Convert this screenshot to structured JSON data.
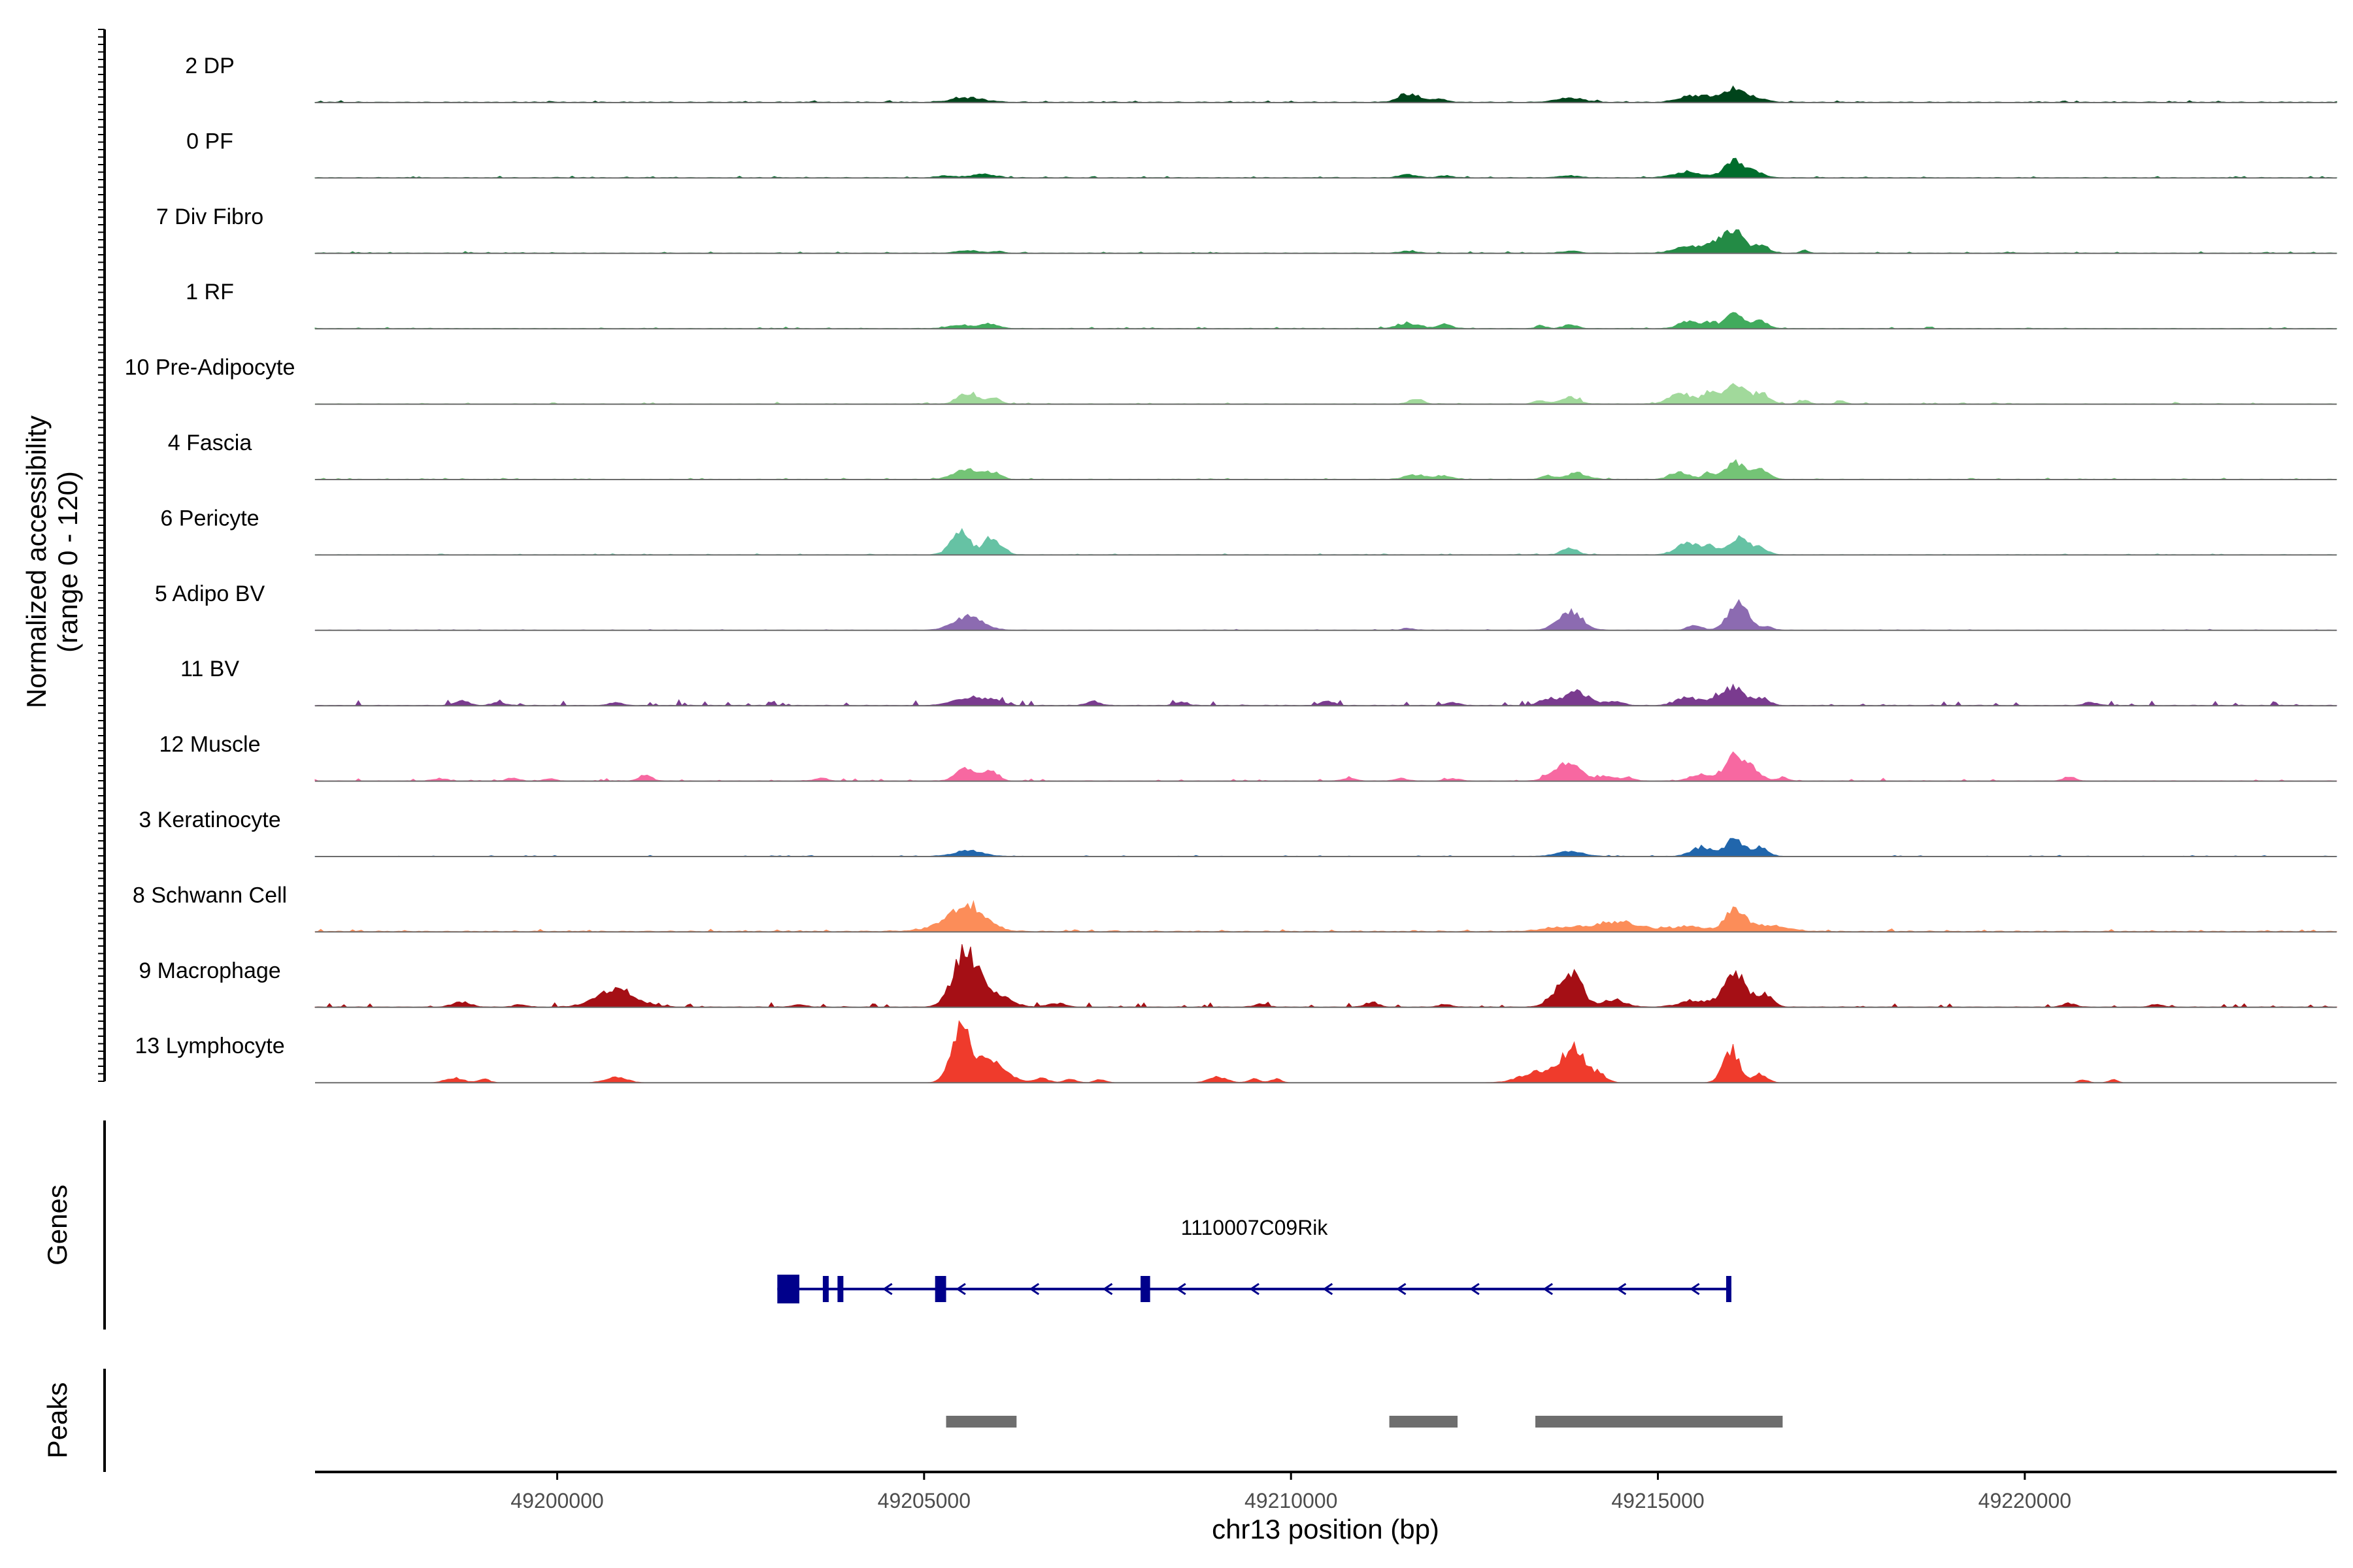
{
  "chart_data": {
    "type": "area",
    "title": "",
    "chromosome": "chr13",
    "xlabel": "chr13 position (bp)",
    "ylabel": "Normalized accessibility",
    "ylabel_range": "(range 0 - 120)",
    "y_range": [
      0,
      120
    ],
    "xlim": [
      49196700,
      49224250
    ],
    "xticks": [
      49200000,
      49205000,
      49210000,
      49215000,
      49220000
    ],
    "xtick_labels": [
      "49200000",
      "49205000",
      "49210000",
      "49215000",
      "49220000"
    ],
    "series": [
      {
        "name": "2 DP",
        "color": "#00441b",
        "baseline": 1.2,
        "noise": 0.8,
        "peaks": [
          [
            49205600,
            220,
            7
          ],
          [
            49211600,
            130,
            14
          ],
          [
            49212000,
            110,
            6
          ],
          [
            49213800,
            180,
            7
          ],
          [
            49215400,
            150,
            9
          ],
          [
            49215700,
            150,
            8
          ],
          [
            49216050,
            130,
            22
          ],
          [
            49216350,
            120,
            7
          ]
        ]
      },
      {
        "name": "0 PF",
        "color": "#006d2c",
        "baseline": 1.0,
        "noise": 0.7,
        "peaks": [
          [
            49205300,
            120,
            3
          ],
          [
            49205800,
            150,
            6
          ],
          [
            49211600,
            120,
            5
          ],
          [
            49212100,
            100,
            3
          ],
          [
            49213800,
            150,
            3
          ],
          [
            49215400,
            200,
            8
          ],
          [
            49216050,
            140,
            28
          ],
          [
            49216350,
            100,
            8
          ]
        ]
      },
      {
        "name": "7 Div Fibro",
        "color": "#238b45",
        "baseline": 0.9,
        "noise": 0.7,
        "peaks": [
          [
            49205600,
            150,
            4
          ],
          [
            49206000,
            80,
            3
          ],
          [
            49211600,
            120,
            3
          ],
          [
            49213800,
            120,
            3
          ],
          [
            49215400,
            180,
            10
          ],
          [
            49215800,
            150,
            18
          ],
          [
            49216050,
            120,
            33
          ],
          [
            49216400,
            100,
            14
          ],
          [
            49217000,
            50,
            6
          ]
        ]
      },
      {
        "name": "1 RF",
        "color": "#41ab5d",
        "baseline": 0.8,
        "noise": 0.7,
        "peaks": [
          [
            49205500,
            150,
            6
          ],
          [
            49205900,
            120,
            7
          ],
          [
            49211600,
            150,
            8
          ],
          [
            49212100,
            100,
            6
          ],
          [
            49213400,
            60,
            5
          ],
          [
            49213800,
            100,
            6
          ],
          [
            49215400,
            120,
            12
          ],
          [
            49215700,
            100,
            10
          ],
          [
            49216050,
            120,
            24
          ],
          [
            49216400,
            100,
            12
          ]
        ]
      },
      {
        "name": "10 Pre-Adipocyte",
        "color": "#a1d99b",
        "baseline": 0.9,
        "noise": 0.8,
        "peaks": [
          [
            49205600,
            130,
            18
          ],
          [
            49205950,
            90,
            9
          ],
          [
            49211700,
            90,
            8
          ],
          [
            49213400,
            80,
            5
          ],
          [
            49213800,
            120,
            12
          ],
          [
            49215300,
            150,
            18
          ],
          [
            49215700,
            100,
            20
          ],
          [
            49216050,
            120,
            37
          ],
          [
            49216400,
            110,
            18
          ],
          [
            49217000,
            60,
            6
          ],
          [
            49217500,
            60,
            5
          ]
        ]
      },
      {
        "name": "4 Fascia",
        "color": "#74c476",
        "baseline": 0.8,
        "noise": 0.6,
        "peaks": [
          [
            49205600,
            180,
            16
          ],
          [
            49205950,
            100,
            10
          ],
          [
            49211700,
            150,
            7
          ],
          [
            49212100,
            100,
            5
          ],
          [
            49213500,
            80,
            6
          ],
          [
            49213900,
            140,
            10
          ],
          [
            49215300,
            130,
            11
          ],
          [
            49215700,
            80,
            11
          ],
          [
            49216050,
            130,
            27
          ],
          [
            49216400,
            110,
            15
          ]
        ]
      },
      {
        "name": "6 Pericyte",
        "color": "#66c2a4",
        "baseline": 0.7,
        "noise": 0.5,
        "peaks": [
          [
            49205500,
            130,
            37
          ],
          [
            49205900,
            90,
            30
          ],
          [
            49206100,
            70,
            8
          ],
          [
            49213800,
            100,
            12
          ],
          [
            49215400,
            150,
            18
          ],
          [
            49215700,
            100,
            13
          ],
          [
            49216100,
            140,
            27
          ],
          [
            49216400,
            100,
            10
          ]
        ]
      },
      {
        "name": "5 Adipo BV",
        "color": "#8c6bb1",
        "baseline": 0.5,
        "noise": 0.4,
        "peaks": [
          [
            49205600,
            200,
            22
          ],
          [
            49211600,
            80,
            3
          ],
          [
            49213800,
            160,
            32
          ],
          [
            49215500,
            100,
            7
          ],
          [
            49216100,
            140,
            45
          ],
          [
            49216500,
            70,
            6
          ]
        ]
      },
      {
        "name": "11 BV",
        "color": "#7a3b8f",
        "baseline": 1.0,
        "noise": 2.6,
        "peaks": [
          [
            49205600,
            200,
            12
          ],
          [
            49205950,
            110,
            9
          ],
          [
            49213500,
            120,
            10
          ],
          [
            49213900,
            160,
            22
          ],
          [
            49214400,
            120,
            7
          ],
          [
            49215400,
            150,
            13
          ],
          [
            49215800,
            120,
            12
          ],
          [
            49216050,
            130,
            28
          ],
          [
            49216400,
            110,
            11
          ]
        ],
        "specks": [
          [
            49198700,
            8
          ],
          [
            49199200,
            5
          ],
          [
            49200800,
            5
          ],
          [
            49207300,
            7
          ],
          [
            49208500,
            5
          ],
          [
            49210500,
            7
          ],
          [
            49212200,
            5
          ],
          [
            49220900,
            5
          ]
        ]
      },
      {
        "name": "12 Muscle",
        "color": "#f768a1",
        "baseline": 0.8,
        "noise": 1.2,
        "peaks": [
          [
            49205550,
            120,
            20
          ],
          [
            49205900,
            100,
            18
          ],
          [
            49213600,
            120,
            16
          ],
          [
            49213850,
            130,
            28
          ],
          [
            49214300,
            120,
            8
          ],
          [
            49214600,
            80,
            6
          ],
          [
            49215600,
            150,
            11
          ],
          [
            49216050,
            120,
            45
          ],
          [
            49216300,
            110,
            18
          ],
          [
            49216700,
            70,
            6
          ],
          [
            49201200,
            90,
            9
          ],
          [
            49199400,
            80,
            5
          ],
          [
            49199900,
            70,
            4
          ],
          [
            49220600,
            80,
            6
          ]
        ],
        "specks": [
          [
            49198400,
            4
          ],
          [
            49203600,
            4
          ],
          [
            49210800,
            4
          ],
          [
            49211500,
            4
          ],
          [
            49212200,
            4
          ]
        ]
      },
      {
        "name": "3 Keratinocyte",
        "color": "#2166ac",
        "baseline": 0.6,
        "noise": 0.5,
        "peaks": [
          [
            49205600,
            200,
            9
          ],
          [
            49213800,
            180,
            8
          ],
          [
            49215600,
            140,
            15
          ],
          [
            49216050,
            120,
            29
          ],
          [
            49216400,
            100,
            15
          ]
        ]
      },
      {
        "name": "8 Schwann Cell",
        "color": "#fc8d59",
        "baseline": 1.5,
        "noise": 1.1,
        "peaks": [
          [
            49205600,
            240,
            38
          ],
          [
            49205300,
            300,
            6
          ],
          [
            49213800,
            300,
            8
          ],
          [
            49214500,
            260,
            15
          ],
          [
            49215400,
            250,
            8
          ],
          [
            49216050,
            130,
            35
          ],
          [
            49216500,
            250,
            10
          ]
        ]
      },
      {
        "name": "9 Macrophage",
        "color": "#a50f15",
        "baseline": 1.0,
        "noise": 2.4,
        "peaks": [
          [
            49205550,
            160,
            85
          ],
          [
            49205900,
            220,
            25
          ],
          [
            49200800,
            260,
            30
          ],
          [
            49213600,
            120,
            20
          ],
          [
            49213850,
            130,
            50
          ],
          [
            49214400,
            150,
            12
          ],
          [
            49215500,
            200,
            10
          ],
          [
            49216050,
            150,
            55
          ],
          [
            49216450,
            110,
            20
          ],
          [
            49198700,
            120,
            8
          ],
          [
            49206800,
            120,
            6
          ]
        ],
        "specks": [
          [
            49199500,
            4
          ],
          [
            49203300,
            4
          ],
          [
            49209600,
            5
          ],
          [
            49211100,
            8
          ],
          [
            49212100,
            4
          ],
          [
            49220600,
            6
          ],
          [
            49221800,
            4
          ]
        ]
      },
      {
        "name": "13 Lymphocyte",
        "color": "#ef3b2c",
        "baseline": 0,
        "noise": 0,
        "peaks": [
          [
            49205500,
            130,
            85
          ],
          [
            49205900,
            200,
            40
          ],
          [
            49213400,
            250,
            18
          ],
          [
            49213850,
            150,
            55
          ],
          [
            49214200,
            100,
            14
          ],
          [
            49216000,
            110,
            55
          ],
          [
            49216400,
            90,
            14
          ],
          [
            49198600,
            120,
            8
          ],
          [
            49199000,
            80,
            6
          ],
          [
            49200800,
            140,
            10
          ],
          [
            49206600,
            100,
            7
          ],
          [
            49207000,
            80,
            6
          ],
          [
            49207400,
            80,
            5
          ],
          [
            49209000,
            120,
            10
          ],
          [
            49209500,
            80,
            6
          ],
          [
            49209800,
            70,
            6
          ],
          [
            49220800,
            60,
            5
          ],
          [
            49221200,
            60,
            5
          ]
        ]
      }
    ],
    "tracks": {
      "genes_label": "Genes",
      "peaks_label": "Peaks",
      "gene": {
        "name": "1110007C09Rik",
        "strand": "-",
        "start": 49203000,
        "end": 49216000,
        "color": "#00008b",
        "exons": [
          [
            49203000,
            49203300
          ],
          [
            49203620,
            49203700
          ],
          [
            49203820,
            49203900
          ],
          [
            49205150,
            49205300
          ],
          [
            49207950,
            49208080
          ],
          [
            49215930,
            49216000
          ]
        ]
      },
      "peaks": {
        "color": "#6e6e6e",
        "regions": [
          [
            49205300,
            49206260
          ],
          [
            49211340,
            49212270
          ],
          [
            49213330,
            49216700
          ]
        ]
      }
    }
  }
}
